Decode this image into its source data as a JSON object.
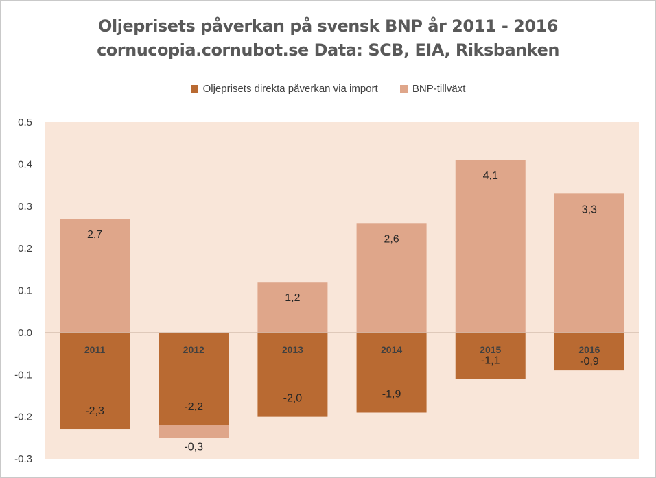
{
  "chart_data": {
    "type": "bar",
    "title": "Oljeprisets påverkan på svensk BNP år 2011 - 2016",
    "subtitle": "cornucopia.cornubot.se Data: SCB, EIA, Riksbanken",
    "categories": [
      "2011",
      "2012",
      "2013",
      "2014",
      "2015",
      "2016"
    ],
    "series": [
      {
        "name": "Oljeprisets direkta påverkan via import",
        "color": "#b96a32",
        "values": [
          -0.23,
          -0.22,
          -0.2,
          -0.19,
          -0.11,
          -0.09
        ],
        "labels": [
          "-2,3",
          "-2,2",
          "-2,0",
          "-1,9",
          "-1,1",
          "-0,9"
        ]
      },
      {
        "name": "BNP-tillväxt",
        "color": "#dfa68a",
        "values": [
          0.27,
          -0.03,
          0.12,
          0.26,
          0.41,
          0.33
        ],
        "labels": [
          "2,7",
          "-0,3",
          "1,2",
          "2,6",
          "4,1",
          "3,3"
        ]
      }
    ],
    "y_ticks": [
      "0.5",
      "0.4",
      "0.3",
      "0.2",
      "0.1",
      "0.0",
      "-0.1",
      "-0.2",
      "-0.3"
    ],
    "ylim": [
      -0.3,
      0.5
    ],
    "plot_background": "#f9e6d9",
    "legend_position": "top"
  }
}
